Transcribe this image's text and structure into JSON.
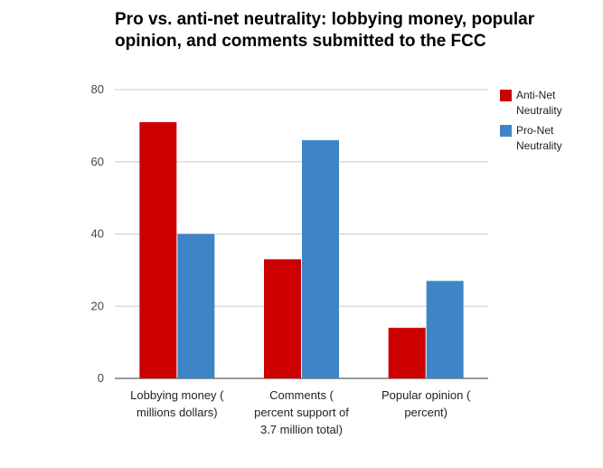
{
  "chart_data": {
    "type": "bar",
    "title": "Pro vs. anti-net neutrality: lobbying money, popular opinion, and comments submitted to the FCC",
    "categories": [
      [
        "Lobbying money (",
        "millions dollars)"
      ],
      [
        "Comments (",
        "percent support of",
        "3.7 million total)"
      ],
      [
        "Popular opinion (",
        "percent)"
      ]
    ],
    "series": [
      {
        "name": [
          "Anti-Net",
          "Neutrality"
        ],
        "values": [
          71,
          33,
          14
        ],
        "color": "#cc0000"
      },
      {
        "name": [
          "Pro-Net",
          "Neutrality"
        ],
        "values": [
          40,
          66,
          27
        ],
        "color": "#3d85c6"
      }
    ],
    "ylim": [
      0,
      80
    ],
    "yticks": [
      0,
      20,
      40,
      60,
      80
    ],
    "grid": true,
    "legend": "right"
  }
}
